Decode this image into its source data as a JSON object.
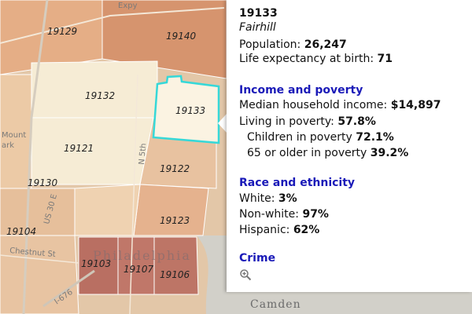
{
  "map": {
    "zip_labels": [
      "19129",
      "19140",
      "19132",
      "19133",
      "19121",
      "19122",
      "19130",
      "19123",
      "19104",
      "19103",
      "19107",
      "19106"
    ],
    "place_labels": {
      "city": "Philadelphia",
      "camden": "Camden",
      "mount": "Mount",
      "ark": "ark"
    },
    "road_labels": {
      "expy": "Expy",
      "us30": "US 30 E",
      "i676": "I-676",
      "chestnut": "Chestnut St",
      "n5": "N 5th"
    },
    "selected_zip": "19133",
    "colors": {
      "lightest": "#f6ecd5",
      "light": "#efd2b1",
      "medium": "#e5ae86",
      "dark": "#d09474",
      "darkest": "#b96f62",
      "highlight": "#36d8d8",
      "water": "#d2d0c9"
    }
  },
  "popup": {
    "zip": "19133",
    "neighborhood": "Fairhill",
    "population_label": "Population: ",
    "population_value": "26,247",
    "life_label": "Life expectancy at birth: ",
    "life_value": "71",
    "income_header": "Income and poverty",
    "median_label": "Median household income: ",
    "median_value": "$14,897",
    "poverty_label": "Living in poverty: ",
    "poverty_value": "57.8%",
    "children_label": "Children in poverty ",
    "children_value": "72.1%",
    "elderly_label": "65 or older in poverty ",
    "elderly_value": "39.2%",
    "race_header": "Race and ethnicity",
    "white_label": "White: ",
    "white_value": "3%",
    "nonwhite_label": "Non-white: ",
    "nonwhite_value": "97%",
    "hispanic_label": "Hispanic: ",
    "hispanic_value": "62%",
    "crime_header": "Crime",
    "zoom_icon": "zoom-in-icon"
  }
}
